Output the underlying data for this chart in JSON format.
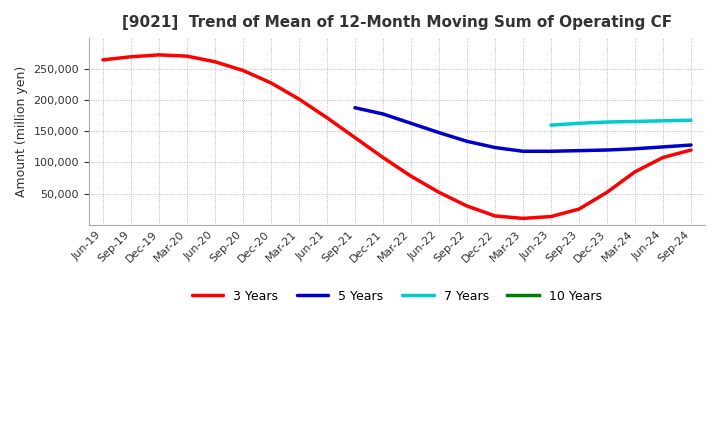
{
  "title": "[9021]  Trend of Mean of 12-Month Moving Sum of Operating CF",
  "ylabel": "Amount (million yen)",
  "background_color": "#ffffff",
  "grid_color": "#aaaaaa",
  "ylim": [
    0,
    300000
  ],
  "yticks": [
    50000,
    100000,
    150000,
    200000,
    250000
  ],
  "x_labels": [
    "Jun-19",
    "Sep-19",
    "Dec-19",
    "Mar-20",
    "Jun-20",
    "Sep-20",
    "Dec-20",
    "Mar-21",
    "Jun-21",
    "Sep-21",
    "Dec-21",
    "Mar-22",
    "Jun-22",
    "Sep-22",
    "Dec-22",
    "Mar-23",
    "Jun-23",
    "Sep-23",
    "Dec-23",
    "Mar-24",
    "Jun-24",
    "Sep-24"
  ],
  "series": [
    {
      "label": "3 Years",
      "color": "#ff0000",
      "linewidth": 2.5,
      "data": [
        [
          0,
          265000
        ],
        [
          1,
          270000
        ],
        [
          2,
          273000
        ],
        [
          3,
          271000
        ],
        [
          4,
          262000
        ],
        [
          5,
          248000
        ],
        [
          6,
          228000
        ],
        [
          7,
          202000
        ],
        [
          8,
          172000
        ],
        [
          9,
          140000
        ],
        [
          10,
          108000
        ],
        [
          11,
          78000
        ],
        [
          12,
          52000
        ],
        [
          13,
          30000
        ],
        [
          14,
          14000
        ],
        [
          15,
          10000
        ],
        [
          16,
          13000
        ],
        [
          17,
          25000
        ],
        [
          18,
          52000
        ],
        [
          19,
          85000
        ],
        [
          20,
          108000
        ],
        [
          21,
          120000
        ]
      ]
    },
    {
      "label": "5 Years",
      "color": "#0000cc",
      "linewidth": 2.5,
      "data": [
        [
          9,
          188000
        ],
        [
          10,
          178000
        ],
        [
          11,
          163000
        ],
        [
          12,
          148000
        ],
        [
          13,
          134000
        ],
        [
          14,
          124000
        ],
        [
          15,
          118000
        ],
        [
          16,
          118000
        ],
        [
          17,
          119000
        ],
        [
          18,
          120000
        ],
        [
          19,
          122000
        ],
        [
          20,
          125000
        ],
        [
          21,
          128000
        ]
      ]
    },
    {
      "label": "7 Years",
      "color": "#00cccc",
      "linewidth": 2.5,
      "data": [
        [
          16,
          160000
        ],
        [
          17,
          163000
        ],
        [
          18,
          165000
        ],
        [
          19,
          166000
        ],
        [
          20,
          167000
        ],
        [
          21,
          168000
        ]
      ]
    },
    {
      "label": "10 Years",
      "color": "#008000",
      "linewidth": 2.5,
      "data": []
    }
  ]
}
